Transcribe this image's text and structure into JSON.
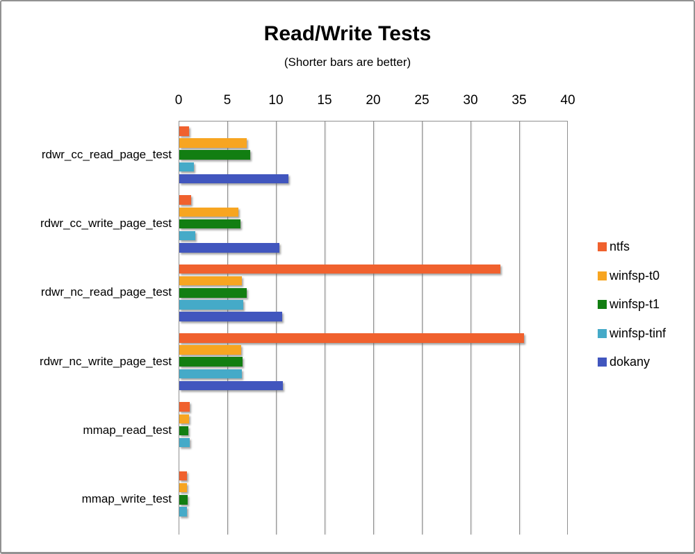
{
  "window": {
    "background": "#ffffff",
    "border_color": "#929292"
  },
  "chart_data": {
    "type": "bar",
    "orientation": "horizontal",
    "title": "Read/Write Tests",
    "subtitle": "(Shorter bars are better)",
    "categories": [
      "rdwr_cc_read_page_test",
      "rdwr_cc_write_page_test",
      "rdwr_nc_read_page_test",
      "rdwr_nc_write_page_test",
      "mmap_read_test",
      "mmap_write_test"
    ],
    "series": [
      {
        "name": "ntfs",
        "color": "#F0612E",
        "values": [
          1.0,
          1.2,
          33.0,
          35.4,
          1.05,
          0.8
        ]
      },
      {
        "name": "winfsp-t0",
        "color": "#F7A521",
        "values": [
          6.9,
          6.1,
          6.4,
          6.35,
          1.0,
          0.8
        ]
      },
      {
        "name": "winfsp-t1",
        "color": "#127E12",
        "values": [
          7.3,
          6.25,
          6.9,
          6.5,
          0.95,
          0.85
        ]
      },
      {
        "name": "winfsp-tinf",
        "color": "#45AAC8",
        "values": [
          1.5,
          1.65,
          6.55,
          6.4,
          1.05,
          0.75
        ]
      },
      {
        "name": "dokany",
        "color": "#4156BE",
        "values": [
          11.2,
          10.3,
          10.55,
          10.65,
          null,
          null
        ]
      }
    ],
    "xlim": [
      0,
      40
    ],
    "x_ticks": [
      0,
      5,
      10,
      15,
      20,
      25,
      30,
      35,
      40
    ],
    "grid": true,
    "gridline_color": "#8f8f8f",
    "legend_position": "right"
  }
}
